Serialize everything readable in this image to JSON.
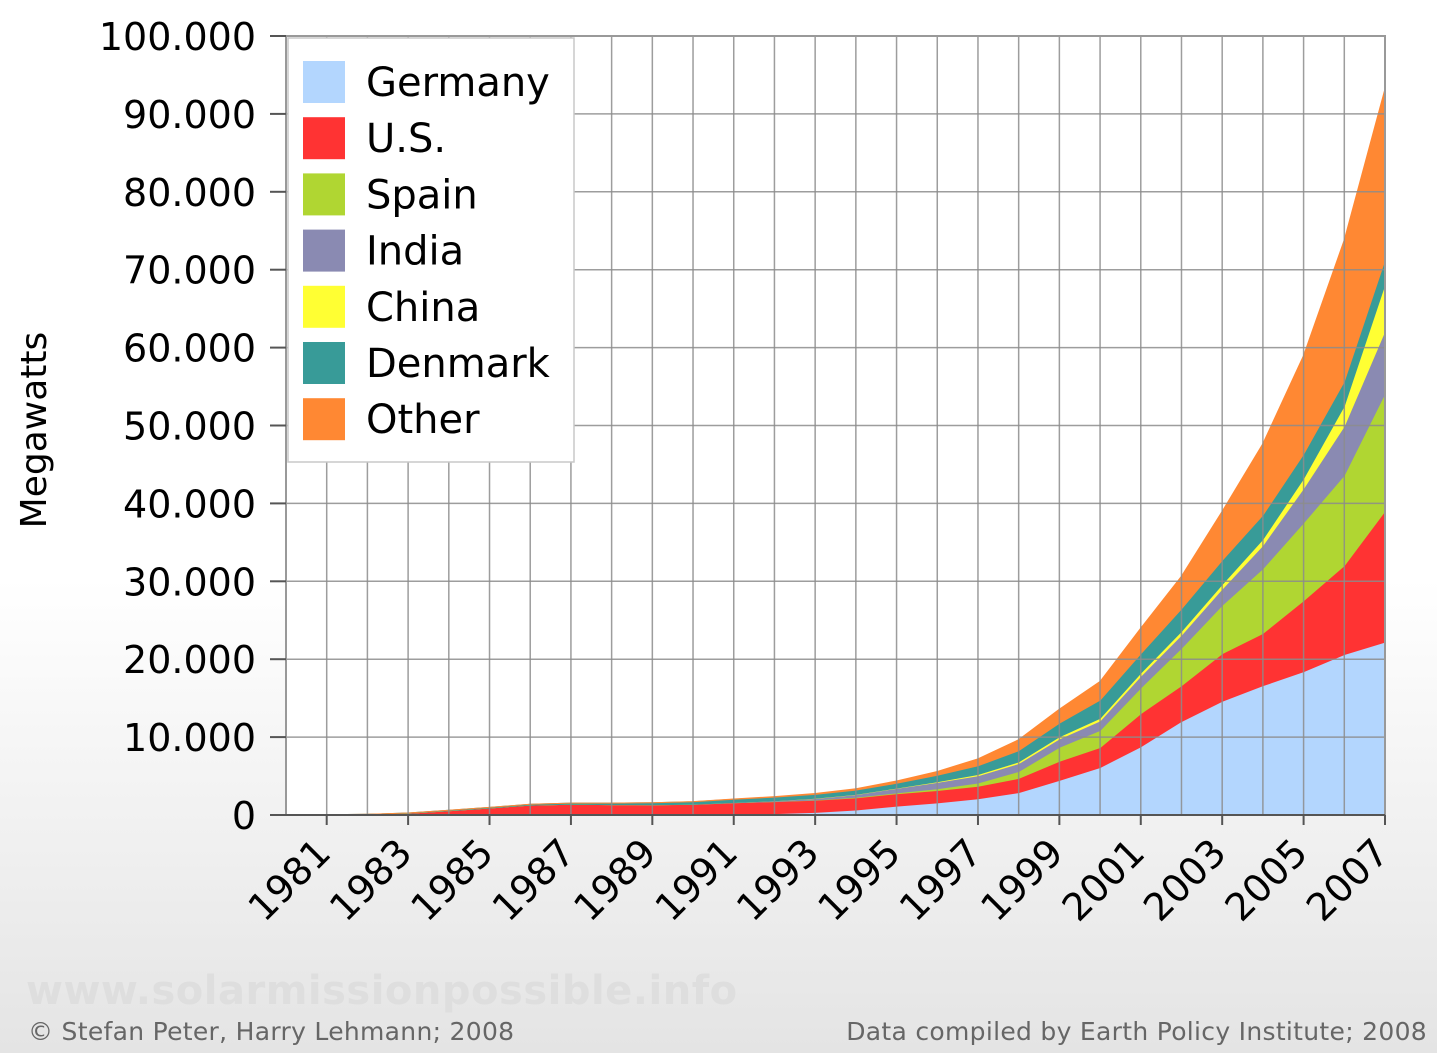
{
  "chart_data": {
    "type": "area",
    "stacked": true,
    "ylabel": "Megawatts",
    "ylim": [
      0,
      100000
    ],
    "yticks": [
      0,
      10000,
      20000,
      30000,
      40000,
      50000,
      60000,
      70000,
      80000,
      90000,
      100000
    ],
    "ytick_labels": [
      "0",
      "10.000",
      "20.000",
      "30.000",
      "40.000",
      "50.000",
      "60.000",
      "70.000",
      "80.000",
      "90.000",
      "100.000"
    ],
    "x": [
      1980,
      1981,
      1982,
      1983,
      1984,
      1985,
      1986,
      1987,
      1988,
      1989,
      1990,
      1991,
      1992,
      1993,
      1994,
      1995,
      1996,
      1997,
      1998,
      1999,
      2000,
      2001,
      2002,
      2003,
      2004,
      2005,
      2006,
      2007
    ],
    "xtick_labels": [
      "1981",
      "1983",
      "1985",
      "1987",
      "1989",
      "1991",
      "1993",
      "1995",
      "1997",
      "1999",
      "2001",
      "2003",
      "2005",
      "2007"
    ],
    "xtick_values": [
      1981,
      1983,
      1985,
      1987,
      1989,
      1991,
      1993,
      1995,
      1997,
      1999,
      2001,
      2003,
      2005,
      2007
    ],
    "grid": true,
    "legend_position": "top-left",
    "series": [
      {
        "name": "Germany",
        "color": "#b3d6fe",
        "values": [
          0,
          0,
          0,
          0,
          0,
          0,
          10,
          20,
          30,
          40,
          60,
          110,
          180,
          330,
          640,
          1140,
          1550,
          2080,
          2880,
          4440,
          6100,
          8750,
          12000,
          14600,
          16600,
          18400,
          20600,
          22200
        ]
      },
      {
        "name": "U.S.",
        "color": "#ff3333",
        "values": [
          0,
          10,
          70,
          230,
          550,
          900,
          1260,
          1350,
          1300,
          1280,
          1300,
          1460,
          1540,
          1560,
          1560,
          1590,
          1590,
          1600,
          1820,
          2450,
          2550,
          4250,
          4600,
          6100,
          6700,
          9100,
          11400,
          16800
        ]
      },
      {
        "name": "Spain",
        "color": "#b0d632",
        "values": [
          0,
          0,
          0,
          0,
          0,
          0,
          0,
          0,
          0,
          0,
          0,
          0,
          10,
          30,
          70,
          110,
          220,
          430,
          880,
          1800,
          2200,
          3300,
          4800,
          6200,
          8300,
          10000,
          11600,
          15100
        ]
      },
      {
        "name": "India",
        "color": "#8a8ab2",
        "values": [
          0,
          0,
          0,
          0,
          0,
          0,
          0,
          0,
          0,
          0,
          10,
          40,
          100,
          200,
          350,
          570,
          820,
          940,
          1020,
          1080,
          1220,
          1500,
          1700,
          2100,
          3000,
          4400,
          6300,
          8000
        ]
      },
      {
        "name": "China",
        "color": "#ffff33",
        "values": [
          0,
          0,
          0,
          0,
          0,
          0,
          0,
          0,
          0,
          0,
          0,
          0,
          10,
          20,
          30,
          40,
          80,
          150,
          220,
          270,
          340,
          400,
          470,
          570,
          760,
          1270,
          2600,
          6000
        ]
      },
      {
        "name": "Denmark",
        "color": "#389b98",
        "values": [
          0,
          10,
          20,
          30,
          50,
          80,
          110,
          160,
          200,
          260,
          340,
          410,
          460,
          500,
          540,
          620,
          830,
          1120,
          1440,
          1750,
          2340,
          2490,
          2890,
          3110,
          3120,
          3130,
          3140,
          3130
        ]
      },
      {
        "name": "Other",
        "color": "#ff8833",
        "values": [
          0,
          0,
          0,
          0,
          0,
          0,
          0,
          0,
          0,
          0,
          10,
          30,
          60,
          120,
          190,
          300,
          500,
          900,
          1400,
          1800,
          2400,
          3300,
          4200,
          6300,
          9200,
          12700,
          18200,
          22000
        ]
      }
    ]
  },
  "footer": {
    "watermark": "www.solarmissionpossible.info",
    "credit_left": "© Stefan Peter, Harry Lehmann; 2008",
    "credit_right": "Data compiled by Earth Policy Institute; 2008"
  }
}
